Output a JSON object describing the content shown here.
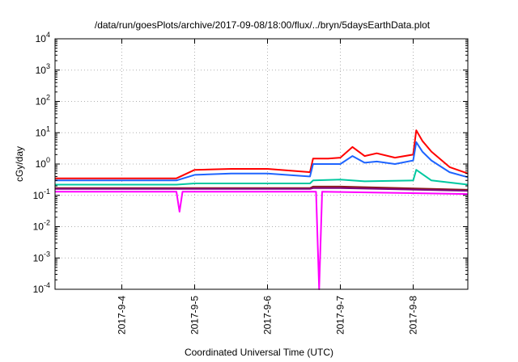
{
  "chart_data": {
    "type": "line",
    "title": "/data/run/goesPlots/archive/2017-09-08/18:00/flux/../bryn/5daysEarthData.plot",
    "xlabel": "Coordinated Universal Time (UTC)",
    "ylabel": "cGy/day",
    "xlim": [
      "2017-09-03T02:00",
      "2017-09-08T18:00"
    ],
    "x_ticks": [
      "2017-9-4",
      "2017-9-5",
      "2017-9-6",
      "2017-9-7",
      "2017-9-8"
    ],
    "y_scale": "log",
    "ylim": [
      0.0001,
      10000
    ],
    "y_ticks": [
      {
        "base": "10",
        "exp": "-4"
      },
      {
        "base": "10",
        "exp": "-3"
      },
      {
        "base": "10",
        "exp": "-2"
      },
      {
        "base": "10",
        "exp": "-1"
      },
      {
        "base": "10",
        "exp": "0"
      },
      {
        "base": "10",
        "exp": "1"
      },
      {
        "base": "10",
        "exp": "2"
      },
      {
        "base": "10",
        "exp": "3"
      },
      {
        "base": "10",
        "exp": "4"
      }
    ],
    "grid": true,
    "series": [
      {
        "color": "#ff0000",
        "x": [
          "2017-09-03T02:00",
          "2017-09-04T00:00",
          "2017-09-04T18:00",
          "2017-09-05T00:00",
          "2017-09-05T12:00",
          "2017-09-06T00:00",
          "2017-09-06T14:00",
          "2017-09-06T15:00",
          "2017-09-06T20:00",
          "2017-09-07T00:00",
          "2017-09-07T04:00",
          "2017-09-07T08:00",
          "2017-09-07T12:00",
          "2017-09-07T18:00",
          "2017-09-08T00:00",
          "2017-09-08T01:00",
          "2017-09-08T03:00",
          "2017-09-08T06:00",
          "2017-09-08T12:00",
          "2017-09-08T18:00"
        ],
        "y": [
          0.35,
          0.35,
          0.35,
          0.65,
          0.7,
          0.7,
          0.55,
          1.5,
          1.5,
          1.6,
          3.5,
          1.8,
          2.2,
          1.6,
          2.0,
          12,
          5.5,
          2.5,
          0.8,
          0.5
        ]
      },
      {
        "color": "#1e64ff",
        "x": [
          "2017-09-03T02:00",
          "2017-09-04T00:00",
          "2017-09-04T18:00",
          "2017-09-05T00:00",
          "2017-09-05T12:00",
          "2017-09-06T00:00",
          "2017-09-06T14:00",
          "2017-09-06T15:00",
          "2017-09-06T20:00",
          "2017-09-07T00:00",
          "2017-09-07T04:00",
          "2017-09-07T08:00",
          "2017-09-07T12:00",
          "2017-09-07T18:00",
          "2017-09-08T00:00",
          "2017-09-08T01:00",
          "2017-09-08T03:00",
          "2017-09-08T06:00",
          "2017-09-08T12:00",
          "2017-09-08T18:00"
        ],
        "y": [
          0.3,
          0.3,
          0.3,
          0.45,
          0.5,
          0.5,
          0.4,
          1.0,
          1.0,
          1.0,
          1.8,
          1.1,
          1.2,
          1.0,
          1.3,
          5,
          2.5,
          1.3,
          0.55,
          0.38
        ]
      },
      {
        "color": "#00c8a0",
        "x": [
          "2017-09-03T02:00",
          "2017-09-04T18:00",
          "2017-09-05T00:00",
          "2017-09-06T14:00",
          "2017-09-06T15:00",
          "2017-09-07T00:00",
          "2017-09-07T08:00",
          "2017-09-08T00:00",
          "2017-09-08T01:00",
          "2017-09-08T06:00",
          "2017-09-08T18:00"
        ],
        "y": [
          0.22,
          0.22,
          0.24,
          0.24,
          0.3,
          0.32,
          0.28,
          0.3,
          0.65,
          0.3,
          0.22
        ]
      },
      {
        "color": "#8b1a1a",
        "x": [
          "2017-09-03T02:00",
          "2017-09-06T14:00",
          "2017-09-06T15:00",
          "2017-09-07T00:00",
          "2017-09-08T18:00"
        ],
        "y": [
          0.17,
          0.17,
          0.19,
          0.19,
          0.15
        ]
      },
      {
        "color": "#800080",
        "x": [
          "2017-09-03T02:00",
          "2017-09-06T14:00",
          "2017-09-06T15:00",
          "2017-09-07T00:00",
          "2017-09-08T18:00"
        ],
        "y": [
          0.16,
          0.16,
          0.17,
          0.17,
          0.14
        ]
      },
      {
        "color": "#ff00ff",
        "x": [
          "2017-09-03T02:00",
          "2017-09-04T18:00",
          "2017-09-04T19:00",
          "2017-09-04T20:00",
          "2017-09-06T15:00",
          "2017-09-06T16:00",
          "2017-09-06T17:00",
          "2017-09-06T18:00",
          "2017-09-08T18:00"
        ],
        "y": [
          0.13,
          0.13,
          0.03,
          0.13,
          0.13,
          0.13,
          0.0001,
          0.13,
          0.11
        ]
      }
    ]
  }
}
